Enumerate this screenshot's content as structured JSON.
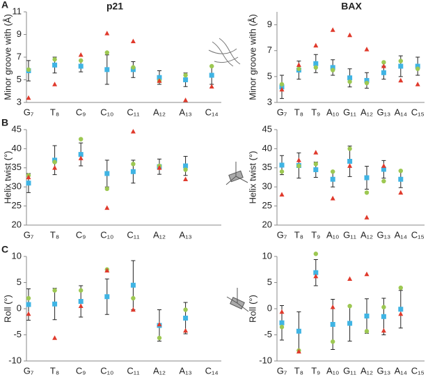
{
  "chart_data": [
    {
      "type": "dot",
      "panel": "A",
      "title": "p21",
      "ylabel": "Minor groove with (Å)",
      "categories": [
        "G₇",
        "T₈",
        "C₉",
        "C₁₀",
        "C₁₁",
        "A₁₂",
        "A₁₃",
        "C₁₄"
      ],
      "ylim": [
        3,
        11
      ],
      "yticks": [
        3,
        5,
        7,
        9,
        11
      ],
      "series": [
        {
          "color": "#3fb4e4",
          "values": [
            5.8,
            6.3,
            6.2,
            5.9,
            5.9,
            5.2,
            5.0,
            5.4
          ],
          "errors": [
            0.9,
            0.7,
            0.5,
            1.3,
            0.7,
            0.6,
            0.6,
            0.8
          ]
        },
        {
          "color": "#9dc852",
          "values": [
            5.9,
            6.8,
            6.7,
            7.4,
            6.1,
            4.9,
            5.4,
            6.2
          ]
        },
        {
          "color": "#e03a2c",
          "values": [
            3.4,
            4.6,
            7.2,
            9.1,
            8.4,
            4.9,
            3.2,
            4.4
          ]
        }
      ]
    },
    {
      "type": "dot",
      "title": "BAX",
      "ylabel": "Minor groove with (Å)",
      "categories": [
        "G₇",
        "T₈",
        "T₉",
        "A₁₀",
        "G₁₁",
        "A₁₂",
        "G₁₃",
        "A₁₄",
        "C₁₅"
      ],
      "ylim": [
        3,
        10
      ],
      "yticks": [
        3,
        5,
        7,
        9
      ],
      "series": [
        {
          "color": "#3fb4e4",
          "values": [
            4.2,
            5.5,
            6.0,
            5.7,
            4.9,
            4.7,
            5.3,
            5.8,
            5.8
          ],
          "errors": [
            0.9,
            0.7,
            0.7,
            0.6,
            0.7,
            0.6,
            0.5,
            0.8,
            0.7
          ]
        },
        {
          "color": "#9dc852",
          "values": [
            4.4,
            5.6,
            5.7,
            5.5,
            4.6,
            4.5,
            6.1,
            6.2,
            5.6
          ]
        },
        {
          "color": "#e03a2c",
          "values": [
            4.0,
            5.9,
            7.4,
            8.6,
            8.2,
            7.1,
            5.8,
            4.7,
            4.4
          ]
        }
      ]
    },
    {
      "type": "dot",
      "panel": "B",
      "ylabel": "Helix twist (°)",
      "categories": [
        "G₇",
        "T₈",
        "C₉",
        "C₁₀",
        "C₁₁",
        "A₁₂",
        "A₁₃"
      ],
      "ylim": [
        20,
        45
      ],
      "yticks": [
        20,
        25,
        30,
        35,
        40,
        45
      ],
      "series": [
        {
          "color": "#3fb4e4",
          "values": [
            31,
            37,
            38.5,
            33.5,
            34,
            35.3,
            35.5
          ],
          "errors": [
            2.5,
            3.8,
            3,
            3.5,
            3,
            2,
            2.5
          ]
        },
        {
          "color": "#9dc852",
          "values": [
            33,
            36.5,
            42.5,
            29.5,
            36,
            35.5,
            34.5
          ]
        },
        {
          "color": "#e03a2c",
          "values": [
            32.5,
            35,
            37.5,
            24.5,
            44.5,
            35,
            32
          ]
        }
      ]
    },
    {
      "type": "dot",
      "ylabel": "Helix twist (°)",
      "categories": [
        "G₇",
        "T₈",
        "T₉",
        "A₁₀",
        "G₁₁",
        "A₁₂",
        "G₁₃",
        "A₁₄",
        "C₁₅"
      ],
      "ylim": [
        20,
        45
      ],
      "yticks": [
        20,
        25,
        30,
        35,
        40,
        45
      ],
      "series": [
        {
          "color": "#3fb4e4",
          "values": [
            35.7,
            35.6,
            34.5,
            32,
            36.7,
            32.4,
            34.6,
            32,
            null
          ],
          "errors": [
            2.5,
            3.3,
            2,
            2,
            4,
            3,
            2.3,
            2.2,
            null
          ]
        },
        {
          "color": "#9dc852",
          "values": [
            34,
            35.5,
            36,
            34,
            40,
            28.5,
            31.5,
            34.2,
            null
          ]
        },
        {
          "color": "#e03a2c",
          "values": [
            28,
            37,
            39,
            27,
            35.5,
            22,
            35.5,
            28.5,
            null
          ]
        }
      ]
    },
    {
      "type": "dot",
      "panel": "C",
      "ylabel": "Roll (°)",
      "categories": [
        "G₇",
        "T₈",
        "C₉",
        "C₁₀",
        "C₁₁",
        "A₁₂",
        "A₁₃",
        "C₁₄"
      ],
      "ylim": [
        -10,
        10
      ],
      "yticks": [
        -10,
        -5,
        0,
        5,
        10
      ],
      "series": [
        {
          "color": "#3fb4e4",
          "values": [
            0.8,
            0.9,
            1.4,
            2.3,
            4.5,
            -3.2,
            -1.8,
            null
          ],
          "errors": [
            3,
            3,
            3,
            3.4,
            4.7,
            3,
            3,
            null
          ]
        },
        {
          "color": "#9dc852",
          "values": [
            2,
            3.5,
            3.5,
            7.5,
            2,
            -5.6,
            -0.2,
            null
          ]
        },
        {
          "color": "#e03a2c",
          "values": [
            -1,
            -5.6,
            0.5,
            7.3,
            -0.2,
            -3,
            -4.2,
            null
          ]
        }
      ]
    },
    {
      "type": "dot",
      "ylabel": "Roll (°)",
      "categories": [
        "G₇",
        "T₈",
        "T₉",
        "A₁₀",
        "G₁₁",
        "A₁₂",
        "G₁₃",
        "A₁₄",
        "C₁₅"
      ],
      "ylim": [
        -10,
        10
      ],
      "yticks": [
        -10,
        -5,
        0,
        5,
        10
      ],
      "series": [
        {
          "color": "#3fb4e4",
          "values": [
            -2.7,
            -4.3,
            6.9,
            -3,
            -2.8,
            -1.4,
            -1.5,
            -0.1,
            null
          ],
          "errors": [
            3.3,
            3.7,
            2.5,
            4.8,
            3.4,
            3.3,
            3.5,
            3.6,
            null
          ]
        },
        {
          "color": "#9dc852",
          "values": [
            -3.5,
            -8,
            10.5,
            -6.3,
            0.5,
            -4.3,
            0.3,
            4,
            null
          ]
        },
        {
          "color": "#e03a2c",
          "values": [
            -0.6,
            -8.2,
            6.2,
            0.3,
            5.7,
            6.6,
            -4.2,
            -1,
            null
          ]
        }
      ]
    }
  ]
}
